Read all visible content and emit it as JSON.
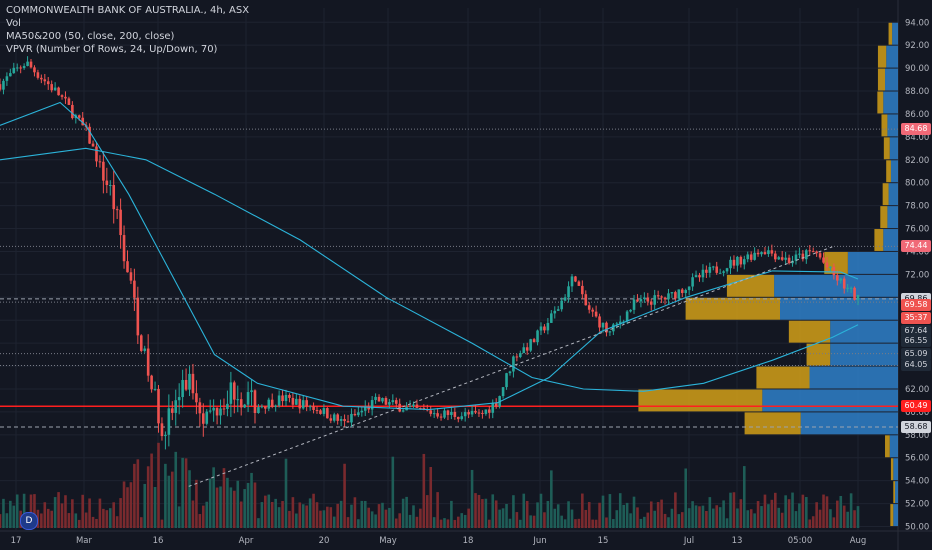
{
  "header": {
    "title_line": "COMMONWEALTH BANK OF AUSTRALIA., 4h, ASX",
    "vol_label": "Vol",
    "ma_label": "MA50&200 (50, close, 200, close)",
    "vpvr_label": "VPVR (Number Of Rows, 24, Up/Down, 70)"
  },
  "badge": {
    "label": "D"
  },
  "chart_data": {
    "type": "candlestick",
    "ylim": [
      50,
      95
    ],
    "y_ticks": [
      "50.00",
      "52.00",
      "54.00",
      "56.00",
      "58.00",
      "60.00",
      "62.00",
      "64.00",
      "66.00",
      "68.00",
      "70.00",
      "72.00",
      "74.00",
      "76.00",
      "78.00",
      "80.00",
      "82.00",
      "84.00",
      "86.00",
      "88.00",
      "90.00",
      "92.00",
      "94.00"
    ],
    "x_ticks": [
      "17",
      "Mar",
      "16",
      "Apr",
      "20",
      "May",
      "18",
      "Jun",
      "15",
      "Jul",
      "13",
      "05:00",
      "Aug"
    ],
    "trend": [
      {
        "t": 0,
        "p": 88.6
      },
      {
        "t": 0.03,
        "p": 90.5
      },
      {
        "t": 0.07,
        "p": 87.6
      },
      {
        "t": 0.1,
        "p": 84.5
      },
      {
        "t": 0.13,
        "p": 79
      },
      {
        "t": 0.15,
        "p": 72
      },
      {
        "t": 0.17,
        "p": 64
      },
      {
        "t": 0.19,
        "p": 58.5
      },
      {
        "t": 0.22,
        "p": 63
      },
      {
        "t": 0.24,
        "p": 59.5
      },
      {
        "t": 0.27,
        "p": 62
      },
      {
        "t": 0.3,
        "p": 60.5
      },
      {
        "t": 0.33,
        "p": 61.2
      },
      {
        "t": 0.37,
        "p": 60.3
      },
      {
        "t": 0.4,
        "p": 59
      },
      {
        "t": 0.44,
        "p": 61
      },
      {
        "t": 0.48,
        "p": 60.2
      },
      {
        "t": 0.52,
        "p": 59.8
      },
      {
        "t": 0.56,
        "p": 59.7
      },
      {
        "t": 0.58,
        "p": 61
      },
      {
        "t": 0.6,
        "p": 65
      },
      {
        "t": 0.62,
        "p": 66
      },
      {
        "t": 0.65,
        "p": 69
      },
      {
        "t": 0.67,
        "p": 72
      },
      {
        "t": 0.68,
        "p": 69.5
      },
      {
        "t": 0.71,
        "p": 66.8
      },
      {
        "t": 0.74,
        "p": 69.5
      },
      {
        "t": 0.78,
        "p": 70
      },
      {
        "t": 0.82,
        "p": 72
      },
      {
        "t": 0.86,
        "p": 73.2
      },
      {
        "t": 0.89,
        "p": 74.2
      },
      {
        "t": 0.92,
        "p": 73.2
      },
      {
        "t": 0.95,
        "p": 74
      },
      {
        "t": 0.97,
        "p": 72
      },
      {
        "t": 1.0,
        "p": 69.8
      }
    ],
    "ma50": [
      {
        "t": 0,
        "p": 85
      },
      {
        "t": 0.07,
        "p": 87
      },
      {
        "t": 0.1,
        "p": 85
      },
      {
        "t": 0.15,
        "p": 79
      },
      {
        "t": 0.2,
        "p": 72
      },
      {
        "t": 0.25,
        "p": 65
      },
      {
        "t": 0.3,
        "p": 62.5
      },
      {
        "t": 0.4,
        "p": 60.5
      },
      {
        "t": 0.5,
        "p": 60.2
      },
      {
        "t": 0.58,
        "p": 60.8
      },
      {
        "t": 0.64,
        "p": 63
      },
      {
        "t": 0.7,
        "p": 67
      },
      {
        "t": 0.8,
        "p": 70
      },
      {
        "t": 0.9,
        "p": 72.3
      },
      {
        "t": 0.98,
        "p": 72.2
      },
      {
        "t": 1.0,
        "p": 71.6
      }
    ],
    "ma200": [
      {
        "t": 0,
        "p": 82
      },
      {
        "t": 0.1,
        "p": 83
      },
      {
        "t": 0.17,
        "p": 82
      },
      {
        "t": 0.25,
        "p": 79
      },
      {
        "t": 0.35,
        "p": 75
      },
      {
        "t": 0.45,
        "p": 70
      },
      {
        "t": 0.55,
        "p": 66
      },
      {
        "t": 0.62,
        "p": 63
      },
      {
        "t": 0.68,
        "p": 62
      },
      {
        "t": 0.75,
        "p": 61.8
      },
      {
        "t": 0.82,
        "p": 62.5
      },
      {
        "t": 0.9,
        "p": 64.5
      },
      {
        "t": 0.97,
        "p": 66.5
      },
      {
        "t": 1.0,
        "p": 67.6
      }
    ],
    "dashed_trendline": [
      {
        "t": 0.22,
        "p": 53.5
      },
      {
        "t": 0.97,
        "p": 74.4
      }
    ],
    "vpvr": {
      "rows": [
        {
          "low": 50,
          "up": 5,
          "down": 8
        },
        {
          "low": 52,
          "up": 3,
          "down": 5
        },
        {
          "low": 54,
          "up": 4,
          "down": 8
        },
        {
          "low": 56,
          "up": 8,
          "down": 14
        },
        {
          "low": 58,
          "up": 95,
          "down": 165
        },
        {
          "low": 60,
          "up": 210,
          "down": 230
        },
        {
          "low": 62,
          "up": 90,
          "down": 150
        },
        {
          "low": 64,
          "up": 40,
          "down": 115
        },
        {
          "low": 66,
          "up": 70,
          "down": 115
        },
        {
          "low": 68,
          "up": 160,
          "down": 200
        },
        {
          "low": 70,
          "up": 80,
          "down": 210
        },
        {
          "low": 72,
          "up": 40,
          "down": 85
        },
        {
          "low": 74,
          "up": 15,
          "down": 25
        },
        {
          "low": 76,
          "up": 12,
          "down": 18
        },
        {
          "low": 78,
          "up": 10,
          "down": 16
        },
        {
          "low": 80,
          "up": 8,
          "down": 12
        },
        {
          "low": 82,
          "up": 10,
          "down": 14
        },
        {
          "low": 84,
          "up": 10,
          "down": 18
        },
        {
          "low": 86,
          "up": 10,
          "down": 25
        },
        {
          "low": 88,
          "up": 12,
          "down": 22
        },
        {
          "low": 90,
          "up": 14,
          "down": 20
        },
        {
          "low": 92,
          "up": 6,
          "down": 10
        }
      ]
    },
    "hlines": [
      {
        "price": 84.68,
        "style": "dotted",
        "color": "#787b86"
      },
      {
        "price": 74.44,
        "style": "dotted",
        "color": "#787b86"
      },
      {
        "price": 69.86,
        "style": "dashed",
        "color": "#9ca3af"
      },
      {
        "price": 69.58,
        "style": "dotted",
        "color": "#787b86"
      },
      {
        "price": 65.09,
        "style": "dotted",
        "color": "#787b86"
      },
      {
        "price": 64.05,
        "style": "dotted",
        "color": "#787b86"
      },
      {
        "price": 60.49,
        "style": "solid",
        "color": "#ff1f1f"
      },
      {
        "price": 58.68,
        "style": "dashed",
        "color": "#9ca3af"
      }
    ],
    "price_tags": [
      {
        "label": "84.68",
        "price": 84.68,
        "bg": "#f06977",
        "fg": "#ffffff"
      },
      {
        "label": "74.44",
        "price": 74.44,
        "bg": "#f06977",
        "fg": "#ffffff"
      },
      {
        "label": "69.86",
        "price": 69.86,
        "bg": "#d1d4dc",
        "fg": "#131722"
      },
      {
        "label": "69.58",
        "price": 69.3,
        "bg": "#ef5350",
        "fg": "#ffffff"
      },
      {
        "label": "35:37",
        "price": 68.2,
        "bg": "#ef5350",
        "fg": "#ffffff"
      },
      {
        "label": "67.64",
        "price": 67.1,
        "bg": "#1f2937",
        "fg": "#d1d4dc"
      },
      {
        "label": "66.55",
        "price": 66.2,
        "bg": "#1f2937",
        "fg": "#d1d4dc"
      },
      {
        "label": "65.09",
        "price": 65.09,
        "bg": "#1f2937",
        "fg": "#d1d4dc"
      },
      {
        "label": "64.05",
        "price": 64.05,
        "bg": "#1f2937",
        "fg": "#d1d4dc"
      },
      {
        "label": "60.49",
        "price": 60.49,
        "bg": "#ff1f1f",
        "fg": "#ffffff"
      },
      {
        "label": "58.68",
        "price": 58.68,
        "bg": "#d1d4dc",
        "fg": "#131722"
      }
    ],
    "colors": {
      "up": "#26a69a",
      "down": "#ef5350",
      "ma": "#2bb3d9",
      "vol_up": "#1e5d57",
      "vol_down": "#7a2a2e",
      "vpvr_up": "#d4a017",
      "vpvr_down": "#2f80c9",
      "bg": "#131722",
      "grid": "#1e2330"
    }
  }
}
